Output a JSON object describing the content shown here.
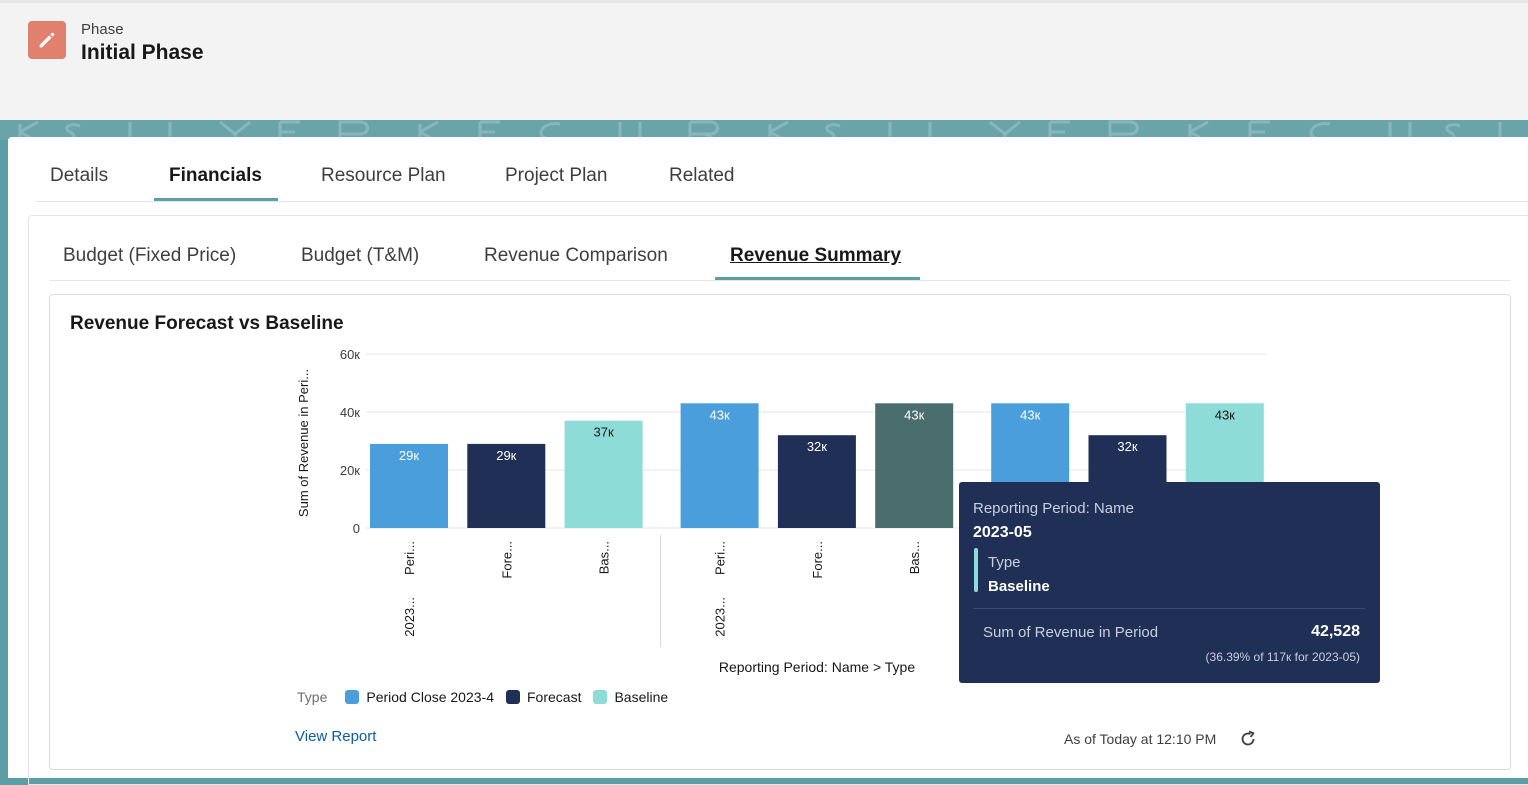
{
  "header": {
    "object_label": "Phase",
    "record_title": "Initial Phase"
  },
  "tabs": [
    {
      "label": "Details",
      "active": false
    },
    {
      "label": "Financials",
      "active": true
    },
    {
      "label": "Resource Plan",
      "active": false
    },
    {
      "label": "Project Plan",
      "active": false
    },
    {
      "label": "Related",
      "active": false
    }
  ],
  "subtabs": [
    {
      "label": "Budget (Fixed Price)",
      "active": false
    },
    {
      "label": "Budget (T&M)",
      "active": false
    },
    {
      "label": "Revenue Comparison",
      "active": false
    },
    {
      "label": "Revenue Summary",
      "active": true
    }
  ],
  "chart_card": {
    "title": "Revenue Forecast vs Baseline",
    "view_report": "View Report",
    "as_of": "As of Today at 12:10 PM"
  },
  "chart_data": {
    "type": "bar",
    "title": "Revenue Forecast vs Baseline",
    "ylabel": "Sum of Revenue in Peri...",
    "xlabel": "Reporting Period: Name > Type",
    "ylim": [
      0,
      60000
    ],
    "yticks": [
      0,
      20000,
      40000,
      60000
    ],
    "ytick_labels": [
      "0",
      "20к",
      "40к",
      "60к"
    ],
    "grid": true,
    "legend_title": "Type",
    "legend_position": "bottom-left",
    "legend": [
      {
        "name": "Period Close 2023-4",
        "color": "#4a9edc"
      },
      {
        "name": "Forecast",
        "color": "#1f2f55"
      },
      {
        "name": "Baseline",
        "color": "#8ddcd8"
      }
    ],
    "groups": [
      {
        "label": "2023...",
        "bars": [
          {
            "type": "Period Close 2023-4",
            "label": "Peri...",
            "value": 29000,
            "value_label": "29к",
            "color": "#4a9edc"
          },
          {
            "type": "Forecast",
            "label": "Fore...",
            "value": 29000,
            "value_label": "29к",
            "color": "#1f2f55"
          },
          {
            "type": "Baseline",
            "label": "Bas...",
            "value": 37000,
            "value_label": "37к",
            "color": "#8ddcd8"
          }
        ]
      },
      {
        "label": "2023...",
        "bars": [
          {
            "type": "Period Close 2023-4",
            "label": "Peri...",
            "value": 43000,
            "value_label": "43к",
            "color": "#4a9edc"
          },
          {
            "type": "Forecast",
            "label": "Fore...",
            "value": 32000,
            "value_label": "32к",
            "color": "#1f2f55"
          },
          {
            "type": "Baseline",
            "label": "Bas...",
            "value": 43000,
            "value_label": "43к",
            "color": "#4a6e6e"
          }
        ]
      },
      {
        "label": "",
        "bars": [
          {
            "type": "Period Close 2023-4",
            "label": "",
            "value": 43000,
            "value_label": "43к",
            "color": "#4a9edc"
          },
          {
            "type": "Forecast",
            "label": "",
            "value": 32000,
            "value_label": "32к",
            "color": "#1f2f55"
          },
          {
            "type": "Baseline",
            "label": "",
            "value": 43000,
            "value_label": "43к",
            "color": "#8ddcd8"
          }
        ]
      }
    ]
  },
  "tooltip": {
    "period_label": "Reporting Period: Name",
    "period_value": "2023-05",
    "type_label": "Type",
    "type_value": "Baseline",
    "metric_label": "Sum of Revenue in Period",
    "metric_value": "42,528",
    "metric_sub": "(36.39% of 117к for 2023-05)"
  },
  "icons": {
    "record": "pencil-icon",
    "refresh": "refresh-icon"
  }
}
